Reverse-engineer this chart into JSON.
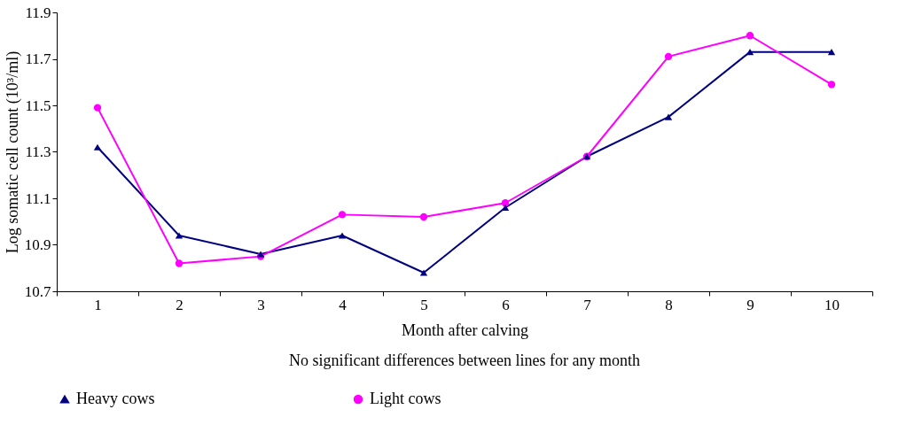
{
  "chart_data": {
    "type": "line",
    "xlabel": "Month after calving",
    "ylabel": "Log somatic cell count (10³/ml)",
    "annotations": [
      "No significant differences between lines for any month"
    ],
    "categories": [
      "1",
      "2",
      "3",
      "4",
      "5",
      "6",
      "7",
      "8",
      "9",
      "10"
    ],
    "series": [
      {
        "name": "Heavy cows",
        "color": "#000080",
        "marker": "triangle",
        "values": [
          11.32,
          10.94,
          10.86,
          10.94,
          10.78,
          11.06,
          11.28,
          11.45,
          11.73,
          11.73
        ]
      },
      {
        "name": "Light cows",
        "color": "#ff00ff",
        "marker": "circle",
        "values": [
          11.49,
          10.82,
          10.85,
          11.03,
          11.02,
          11.08,
          11.28,
          11.71,
          11.8,
          11.59
        ]
      }
    ],
    "ylim": [
      10.7,
      11.9
    ],
    "yticks": [
      10.7,
      10.9,
      11.1,
      11.3,
      11.5,
      11.7,
      11.9
    ],
    "grid": false,
    "legend": "bottom",
    "line_style": "solid"
  }
}
